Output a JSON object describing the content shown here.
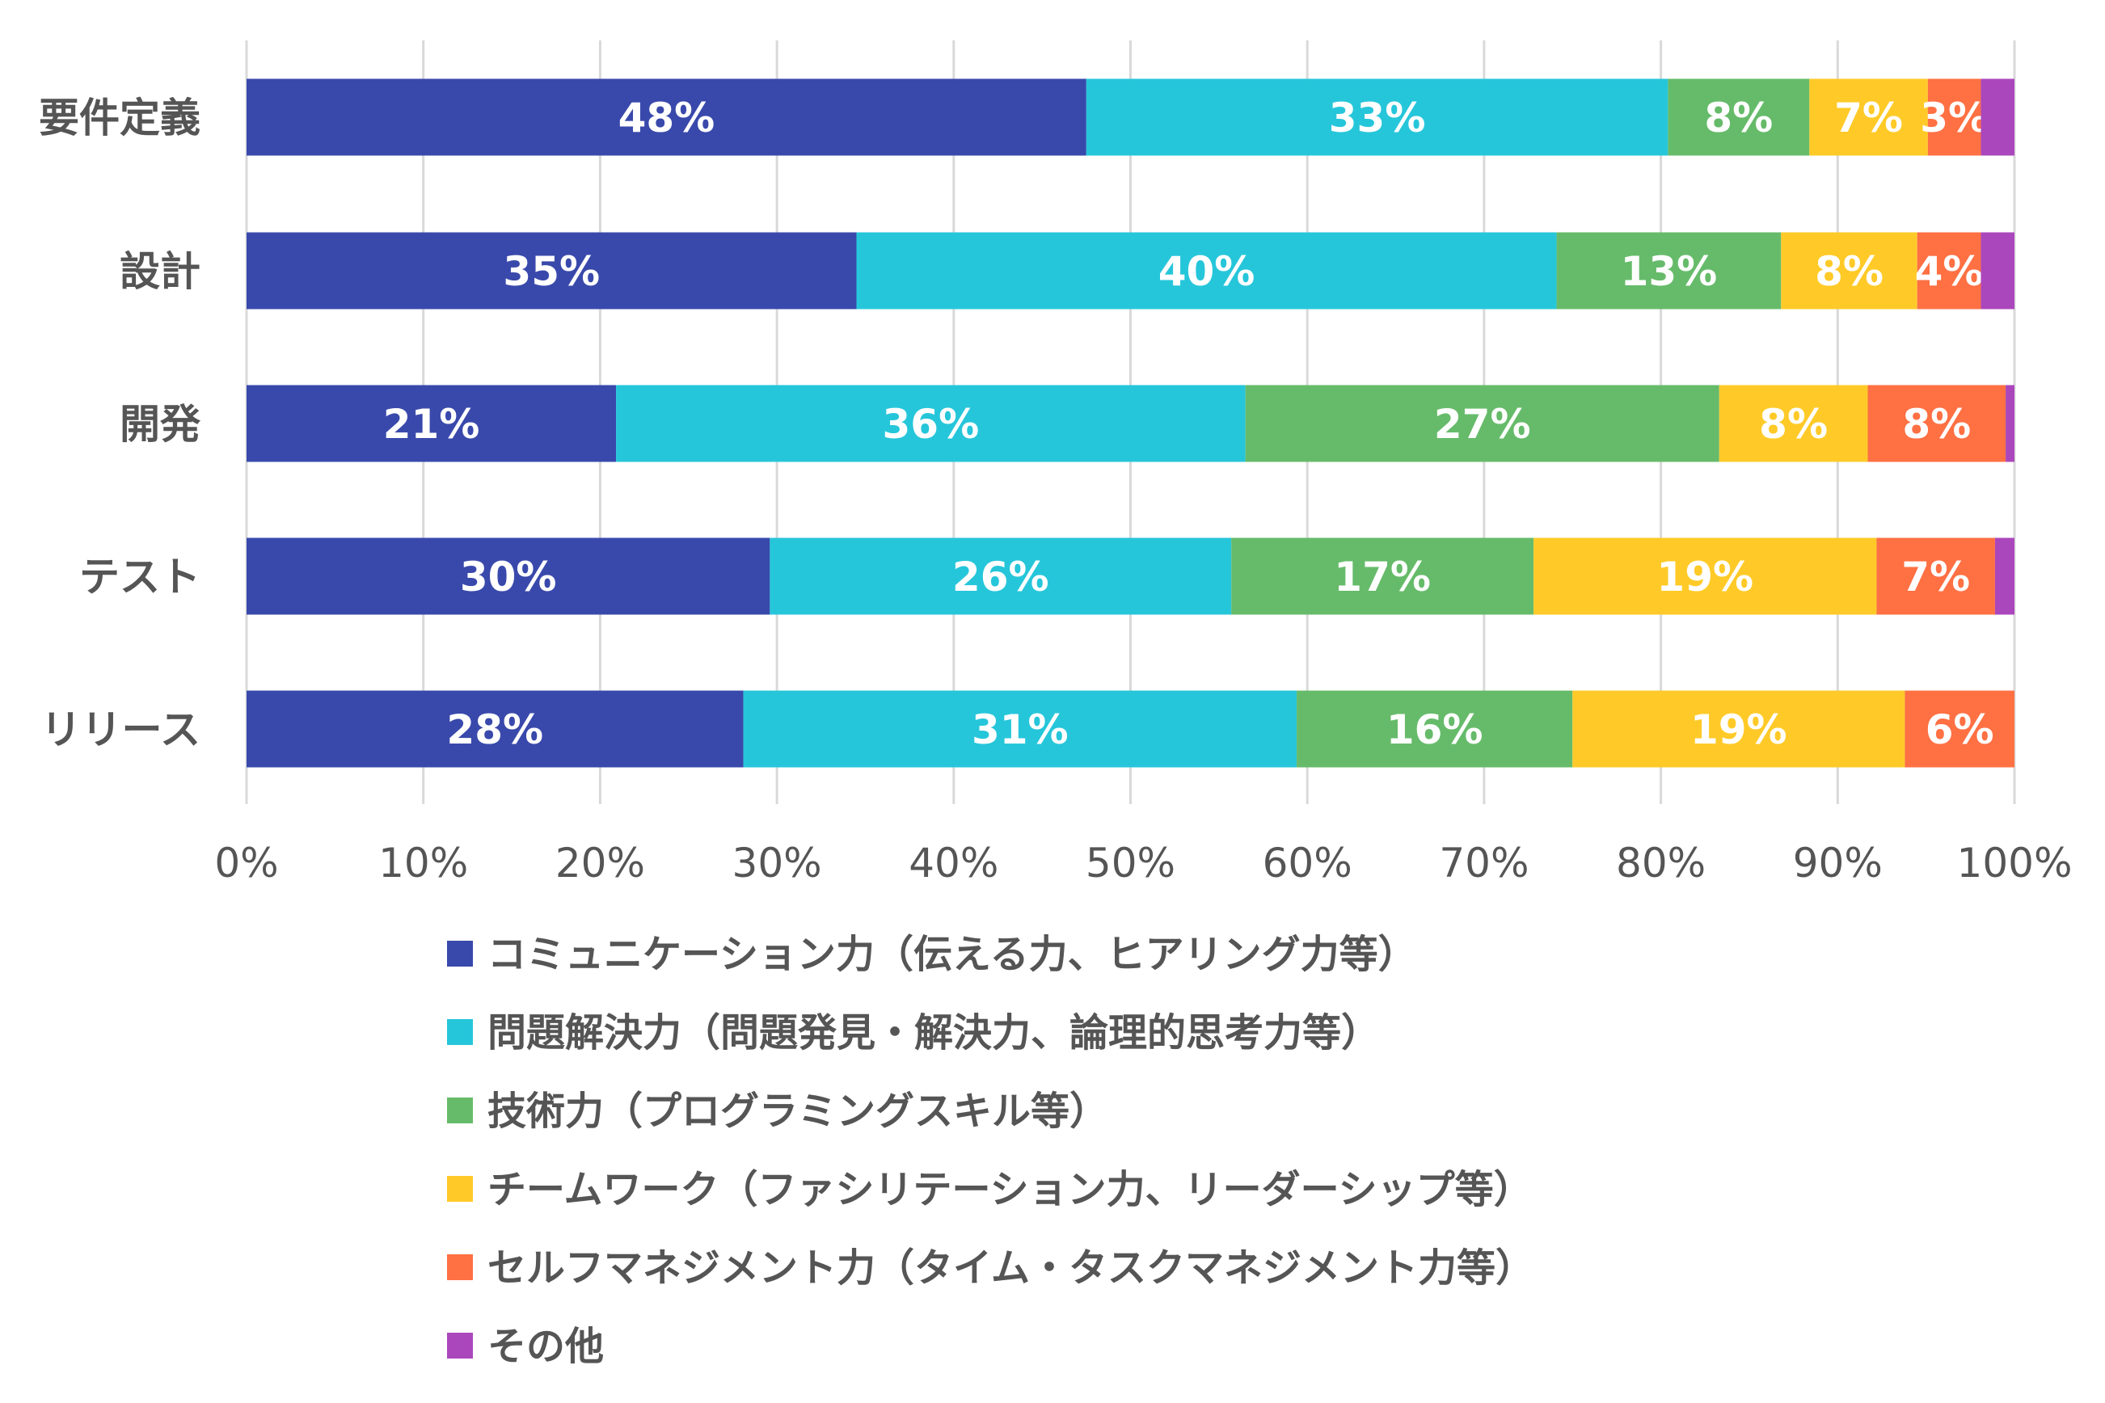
{
  "chart_data": {
    "type": "bar",
    "orientation": "horizontal",
    "stacked": true,
    "percent_stacked": true,
    "categories": [
      "要件定義",
      "設計",
      "開発",
      "テスト",
      "リリース"
    ],
    "series": [
      {
        "name": "コミュニケーション力（伝える力、ヒアリング力等）",
        "color": "#3949ab",
        "values": [
          47.5,
          34.5,
          20.9,
          29.6,
          28.1
        ],
        "labels": [
          "48%",
          "35%",
          "21%",
          "30%",
          "28%"
        ]
      },
      {
        "name": "問題解決力（問題発見・解決力、論理的思考力等）",
        "color": "#26c6da",
        "values": [
          32.9,
          39.6,
          35.6,
          26.1,
          31.3
        ],
        "labels": [
          "33%",
          "40%",
          "36%",
          "26%",
          "31%"
        ]
      },
      {
        "name": "技術力（プログラミングスキル等）",
        "color": "#66bb6a",
        "values": [
          8.0,
          12.7,
          26.8,
          17.1,
          15.6
        ],
        "labels": [
          "8%",
          "13%",
          "27%",
          "17%",
          "16%"
        ]
      },
      {
        "name": "チームワーク（ファシリテーション力、リーダーシップ等）",
        "color": "#ffca28",
        "values": [
          6.7,
          7.7,
          8.4,
          19.4,
          18.8
        ],
        "labels": [
          "7%",
          "8%",
          "8%",
          "19%",
          "19%"
        ]
      },
      {
        "name": "セルフマネジメント力（タイム・タスクマネジメント力等）",
        "color": "#ff7043",
        "values": [
          3.0,
          3.6,
          7.8,
          6.7,
          6.2
        ],
        "labels": [
          "3%",
          "4%",
          "8%",
          "7%",
          "6%"
        ]
      },
      {
        "name": "その他",
        "color": "#ab47bc",
        "values": [
          1.9,
          1.9,
          0.5,
          1.1,
          0.0
        ],
        "labels": [
          "",
          "",
          "",
          "",
          ""
        ]
      }
    ],
    "x_ticks": [
      "0%",
      "10%",
      "20%",
      "30%",
      "40%",
      "50%",
      "60%",
      "70%",
      "80%",
      "90%",
      "100%"
    ],
    "xlim": [
      0,
      100
    ],
    "grid": true,
    "legend_position": "bottom"
  }
}
